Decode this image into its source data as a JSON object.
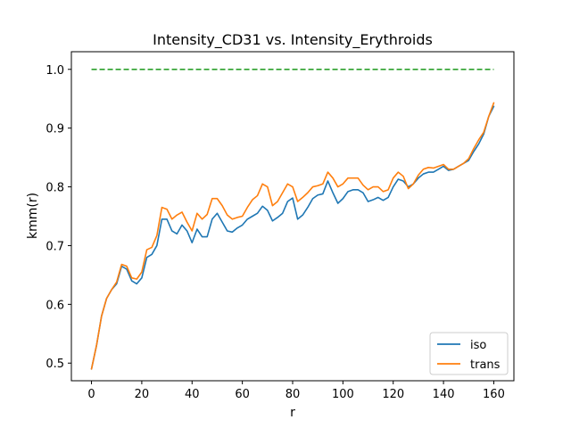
{
  "chart_data": {
    "type": "line",
    "title": "Intensity_CD31 vs. Intensity_Erythroids",
    "xlabel": "r",
    "ylabel": "kmm(r)",
    "xlim": [
      -8,
      168
    ],
    "ylim": [
      0.47,
      1.03
    ],
    "xticks": [
      0,
      20,
      40,
      60,
      80,
      100,
      120,
      140,
      160
    ],
    "yticks": [
      0.5,
      0.6,
      0.7,
      0.8,
      0.9,
      1.0
    ],
    "xtick_labels": [
      "0",
      "20",
      "40",
      "60",
      "80",
      "100",
      "120",
      "140",
      "160"
    ],
    "ytick_labels": [
      "0.5",
      "0.6",
      "0.7",
      "0.8",
      "0.9",
      "1.0"
    ],
    "grid": false,
    "legend_position": "lower-right",
    "series": [
      {
        "name": "iso",
        "color": "#1f77b4",
        "x": [
          0,
          2,
          4,
          6,
          8,
          10,
          12,
          14,
          16,
          18,
          20,
          22,
          24,
          26,
          28,
          30,
          32,
          34,
          36,
          38,
          40,
          42,
          44,
          46,
          48,
          50,
          52,
          54,
          56,
          58,
          60,
          62,
          64,
          66,
          68,
          70,
          72,
          74,
          76,
          78,
          80,
          82,
          84,
          86,
          88,
          90,
          92,
          94,
          96,
          98,
          100,
          102,
          104,
          106,
          108,
          110,
          112,
          114,
          116,
          118,
          120,
          122,
          124,
          126,
          128,
          130,
          132,
          134,
          136,
          138,
          140,
          142,
          144,
          146,
          148,
          150,
          152,
          154,
          156,
          158,
          160
        ],
        "values": [
          0.49,
          0.53,
          0.58,
          0.61,
          0.625,
          0.635,
          0.665,
          0.66,
          0.64,
          0.635,
          0.645,
          0.68,
          0.685,
          0.7,
          0.745,
          0.745,
          0.725,
          0.72,
          0.735,
          0.725,
          0.705,
          0.728,
          0.715,
          0.715,
          0.745,
          0.755,
          0.74,
          0.725,
          0.723,
          0.73,
          0.735,
          0.745,
          0.75,
          0.755,
          0.767,
          0.76,
          0.742,
          0.748,
          0.755,
          0.775,
          0.781,
          0.745,
          0.752,
          0.765,
          0.78,
          0.786,
          0.788,
          0.81,
          0.79,
          0.772,
          0.78,
          0.792,
          0.795,
          0.795,
          0.79,
          0.775,
          0.778,
          0.782,
          0.777,
          0.782,
          0.8,
          0.813,
          0.81,
          0.8,
          0.805,
          0.815,
          0.822,
          0.825,
          0.825,
          0.83,
          0.835,
          0.828,
          0.83,
          0.835,
          0.84,
          0.845,
          0.86,
          0.873,
          0.89,
          0.92,
          0.937
        ]
      },
      {
        "name": "trans",
        "color": "#ff7f0e",
        "x": [
          0,
          2,
          4,
          6,
          8,
          10,
          12,
          14,
          16,
          18,
          20,
          22,
          24,
          26,
          28,
          30,
          32,
          34,
          36,
          38,
          40,
          42,
          44,
          46,
          48,
          50,
          52,
          54,
          56,
          58,
          60,
          62,
          64,
          66,
          68,
          70,
          72,
          74,
          76,
          78,
          80,
          82,
          84,
          86,
          88,
          90,
          92,
          94,
          96,
          98,
          100,
          102,
          104,
          106,
          108,
          110,
          112,
          114,
          116,
          118,
          120,
          122,
          124,
          126,
          128,
          130,
          132,
          134,
          136,
          138,
          140,
          142,
          144,
          146,
          148,
          150,
          152,
          154,
          156,
          158,
          160
        ],
        "values": [
          0.49,
          0.53,
          0.58,
          0.61,
          0.625,
          0.638,
          0.668,
          0.665,
          0.645,
          0.643,
          0.655,
          0.693,
          0.697,
          0.717,
          0.765,
          0.762,
          0.745,
          0.752,
          0.757,
          0.74,
          0.725,
          0.755,
          0.745,
          0.753,
          0.78,
          0.78,
          0.768,
          0.752,
          0.745,
          0.748,
          0.75,
          0.765,
          0.778,
          0.785,
          0.805,
          0.8,
          0.768,
          0.775,
          0.79,
          0.805,
          0.8,
          0.775,
          0.782,
          0.79,
          0.8,
          0.802,
          0.805,
          0.825,
          0.815,
          0.8,
          0.805,
          0.815,
          0.815,
          0.815,
          0.803,
          0.795,
          0.8,
          0.8,
          0.792,
          0.795,
          0.815,
          0.825,
          0.818,
          0.797,
          0.805,
          0.82,
          0.83,
          0.833,
          0.832,
          0.835,
          0.838,
          0.83,
          0.83,
          0.835,
          0.84,
          0.848,
          0.865,
          0.88,
          0.893,
          0.92,
          0.943
        ]
      },
      {
        "name": "",
        "color": "#2ca02c",
        "dashed": true,
        "x": [
          0,
          160
        ],
        "values": [
          1.0,
          1.0
        ]
      }
    ]
  }
}
